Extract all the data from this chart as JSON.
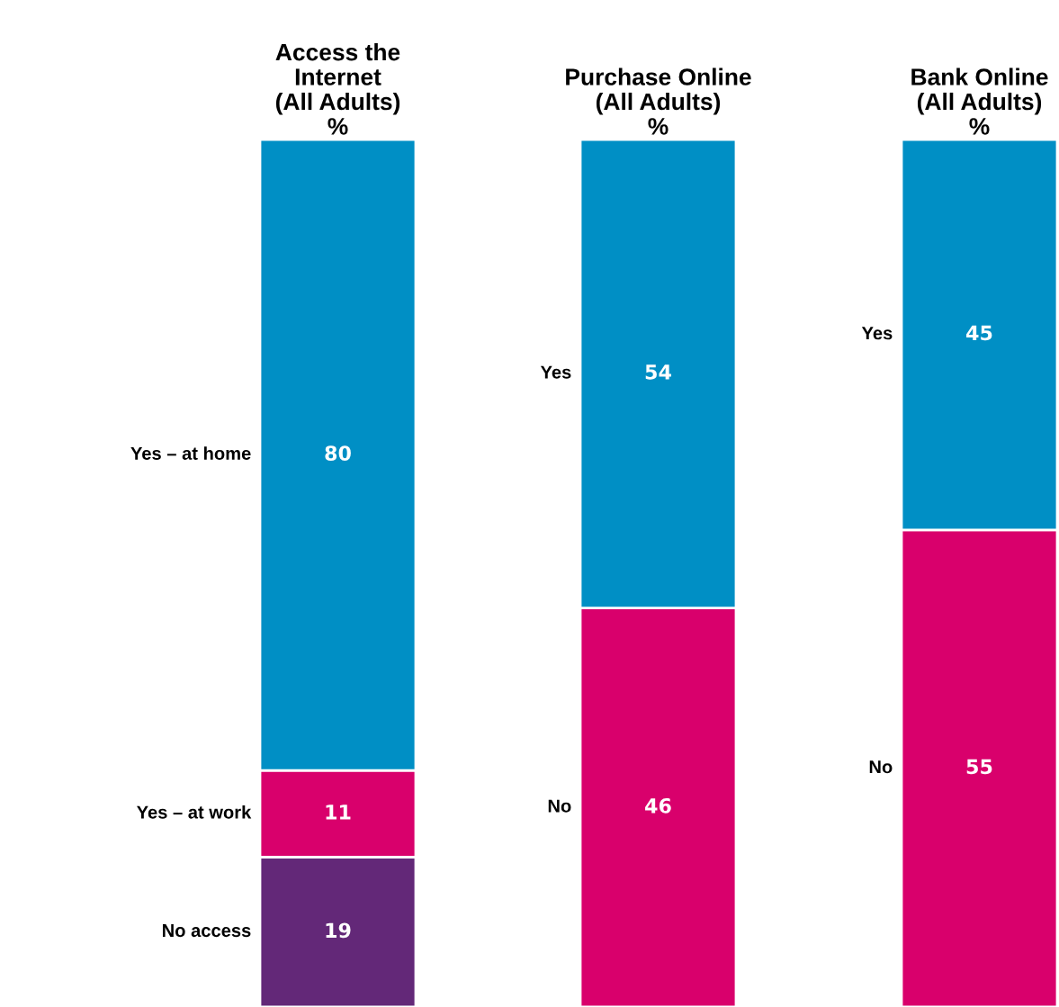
{
  "chart_data": [
    {
      "type": "bar",
      "stacked": true,
      "title": "Access the\nInternet\n(All Adults)\n%",
      "categories": [
        null
      ],
      "ylim": [
        0,
        110
      ],
      "tick_labels": false,
      "data_labels": true,
      "grid": false,
      "series": [
        {
          "name": "No access",
          "color": "#632878",
          "values": [
            19
          ]
        },
        {
          "name": "Yes – at work",
          "color": "#d9006c",
          "values": [
            11
          ]
        },
        {
          "name": "Yes – at home",
          "color": "#008fc5",
          "values": [
            80
          ]
        }
      ]
    },
    {
      "type": "bar",
      "stacked": true,
      "title": "Purchase Online\n(All Adults)\n%",
      "categories": [
        null
      ],
      "ylim": [
        0,
        100
      ],
      "tick_labels": false,
      "data_labels": true,
      "grid": false,
      "series": [
        {
          "name": "No",
          "color": "#d9006c",
          "values": [
            46
          ]
        },
        {
          "name": "Yes",
          "color": "#008fc5",
          "values": [
            54
          ]
        }
      ]
    },
    {
      "type": "bar",
      "stacked": true,
      "title": "Bank Online\n(All Adults)\n%",
      "categories": [
        null
      ],
      "ylim": [
        0,
        100
      ],
      "tick_labels": false,
      "data_labels": true,
      "grid": false,
      "series": [
        {
          "name": "No",
          "color": "#d9006c",
          "values": [
            55
          ]
        },
        {
          "name": "Yes",
          "color": "#008fc5",
          "values": [
            45
          ]
        }
      ]
    }
  ]
}
